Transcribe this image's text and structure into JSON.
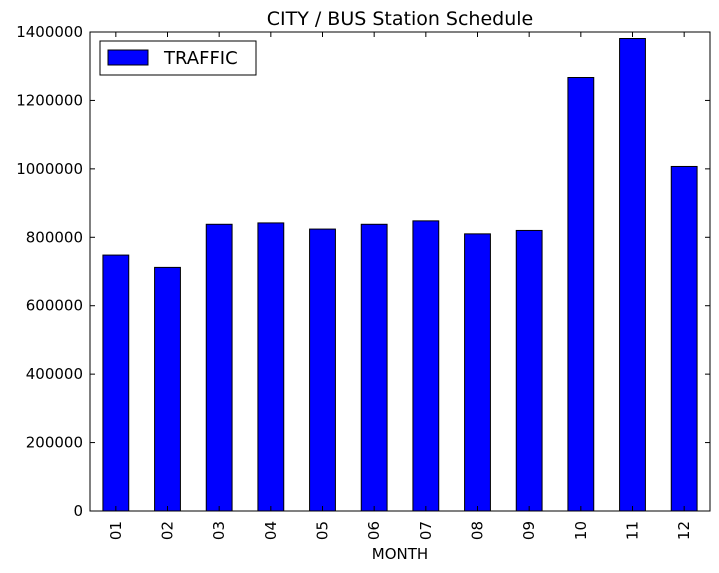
{
  "chart_data": {
    "type": "bar",
    "title": "CITY / BUS Station Schedule",
    "xlabel": "MONTH",
    "ylabel": "",
    "categories": [
      "01",
      "02",
      "03",
      "04",
      "05",
      "06",
      "07",
      "08",
      "09",
      "10",
      "11",
      "12"
    ],
    "series": [
      {
        "name": "TRAFFIC",
        "color": "#0000ff",
        "values": [
          748000,
          712000,
          838000,
          842000,
          824000,
          838000,
          848000,
          810000,
          820000,
          1267000,
          1381000,
          1007000
        ]
      }
    ],
    "ylim": [
      0,
      1400000
    ],
    "yticks": [
      0,
      200000,
      400000,
      600000,
      800000,
      1000000,
      1200000,
      1400000
    ],
    "ytick_labels": [
      "0",
      "200000",
      "400000",
      "600000",
      "800000",
      "1000000",
      "1200000",
      "1400000"
    ],
    "legend_position": "top-left",
    "grid": false
  }
}
